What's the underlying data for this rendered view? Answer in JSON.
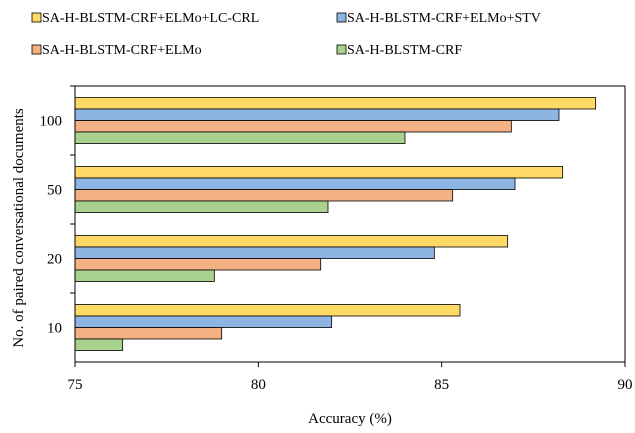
{
  "chart_data": {
    "type": "bar",
    "orientation": "horizontal",
    "xlabel": "Accuracy (%)",
    "ylabel": "No. of paired conversational documents",
    "xlim": [
      75,
      90
    ],
    "xticks": [
      "75",
      "80",
      "85",
      "90"
    ],
    "categories": [
      "10",
      "20",
      "50",
      "100"
    ],
    "grid": false,
    "legend_position": "top",
    "series": [
      {
        "name": "SA-H-BLSTM-CRF+ELMo+LC-CRL",
        "color": "#FFD966",
        "values": [
          85.5,
          86.8,
          88.3,
          89.2
        ]
      },
      {
        "name": "SA-H-BLSTM-CRF+ELMo+STV",
        "color": "#8DB4E2",
        "values": [
          82.0,
          84.8,
          87.0,
          88.2
        ]
      },
      {
        "name": "SA-H-BLSTM-CRF+ELMo",
        "color": "#F4B183",
        "values": [
          79.0,
          81.7,
          85.3,
          86.9
        ]
      },
      {
        "name": "SA-H-BLSTM-CRF",
        "color": "#A9D18E",
        "values": [
          76.3,
          78.8,
          81.9,
          84.0
        ]
      }
    ]
  }
}
